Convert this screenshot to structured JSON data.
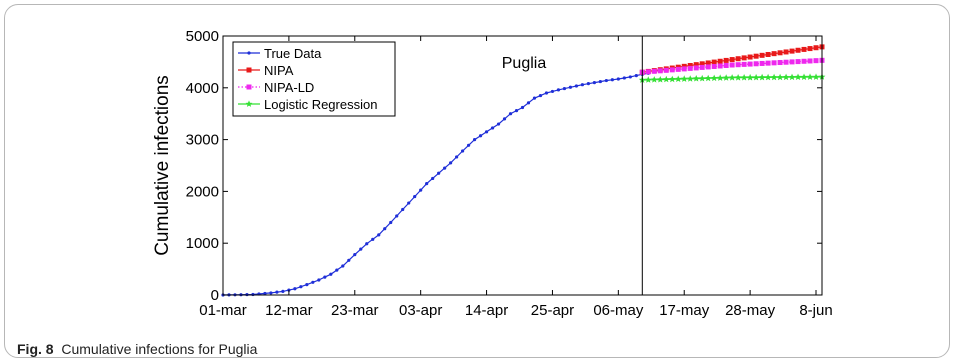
{
  "caption": {
    "label": "Fig. 8",
    "text": "Cumulative infections for Puglia"
  },
  "colors": {
    "true_data": "#1f2fd8",
    "nipa": "#e81919",
    "nipa_ld": "#ee28ee",
    "logistic": "#33e033",
    "axis": "#000000"
  },
  "chart_data": {
    "type": "line",
    "title": "Puglia",
    "xlabel": "",
    "ylabel": "Cumulative infections",
    "ylim": [
      0,
      5000
    ],
    "yticks": [
      0,
      1000,
      2000,
      3000,
      4000,
      5000
    ],
    "x_range_days": [
      0,
      100
    ],
    "xticks": [
      {
        "day": 0,
        "label": "01-mar"
      },
      {
        "day": 11,
        "label": "12-mar"
      },
      {
        "day": 22,
        "label": "23-mar"
      },
      {
        "day": 33,
        "label": "03-apr"
      },
      {
        "day": 44,
        "label": "14-apr"
      },
      {
        "day": 55,
        "label": "25-apr"
      },
      {
        "day": 66,
        "label": "06-may"
      },
      {
        "day": 77,
        "label": "17-may"
      },
      {
        "day": 88,
        "label": "28-may"
      },
      {
        "day": 99,
        "label": "8-jun"
      }
    ],
    "forecast_start_day": 70,
    "legend_position": "top-left",
    "grid": false,
    "series": [
      {
        "name": "True Data",
        "marker": "dot",
        "line": "solid",
        "anchors": [
          [
            0,
            0
          ],
          [
            5,
            10
          ],
          [
            8,
            40
          ],
          [
            10,
            70
          ],
          [
            12,
            120
          ],
          [
            14,
            200
          ],
          [
            16,
            290
          ],
          [
            18,
            400
          ],
          [
            20,
            560
          ],
          [
            22,
            780
          ],
          [
            24,
            990
          ],
          [
            26,
            1160
          ],
          [
            28,
            1400
          ],
          [
            30,
            1650
          ],
          [
            32,
            1900
          ],
          [
            34,
            2150
          ],
          [
            36,
            2350
          ],
          [
            38,
            2550
          ],
          [
            40,
            2780
          ],
          [
            42,
            3000
          ],
          [
            44,
            3150
          ],
          [
            46,
            3300
          ],
          [
            48,
            3500
          ],
          [
            50,
            3620
          ],
          [
            52,
            3800
          ],
          [
            54,
            3900
          ],
          [
            56,
            3960
          ],
          [
            58,
            4010
          ],
          [
            60,
            4060
          ],
          [
            62,
            4100
          ],
          [
            64,
            4140
          ],
          [
            66,
            4170
          ],
          [
            68,
            4210
          ],
          [
            70,
            4260
          ],
          [
            71,
            4280
          ]
        ]
      },
      {
        "name": "NIPA",
        "marker": "square",
        "line": "solid",
        "anchors": [
          [
            70,
            4300
          ],
          [
            100,
            4790
          ]
        ]
      },
      {
        "name": "NIPA-LD",
        "marker": "square",
        "line": "dotted",
        "anchors": [
          [
            70,
            4300
          ],
          [
            85,
            4440
          ],
          [
            100,
            4530
          ]
        ]
      },
      {
        "name": "Logistic Regression",
        "marker": "star",
        "line": "solid",
        "anchors": [
          [
            70,
            4150
          ],
          [
            85,
            4195
          ],
          [
            100,
            4210
          ]
        ]
      }
    ]
  }
}
